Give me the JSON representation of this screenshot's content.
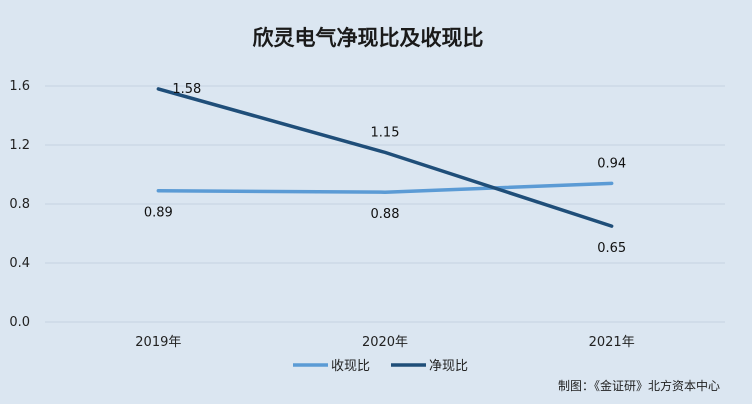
{
  "chart_data": {
    "type": "line",
    "title": "欣灵电气净现比及收现比",
    "categories": [
      "2019年",
      "2020年",
      "2021年"
    ],
    "series": [
      {
        "name": "收现比",
        "values": [
          0.89,
          0.88,
          0.94
        ],
        "color": "#5b9bd5"
      },
      {
        "name": "净现比",
        "values": [
          1.58,
          1.15,
          0.65
        ],
        "color": "#1f4e79"
      }
    ],
    "yticks": [
      "0.0",
      "0.4",
      "0.8",
      "1.2",
      "1.6"
    ],
    "ylim": [
      0,
      1.6
    ],
    "grid": true,
    "legend": "bottom"
  },
  "source": "制图：《金证研》北方资本中心"
}
